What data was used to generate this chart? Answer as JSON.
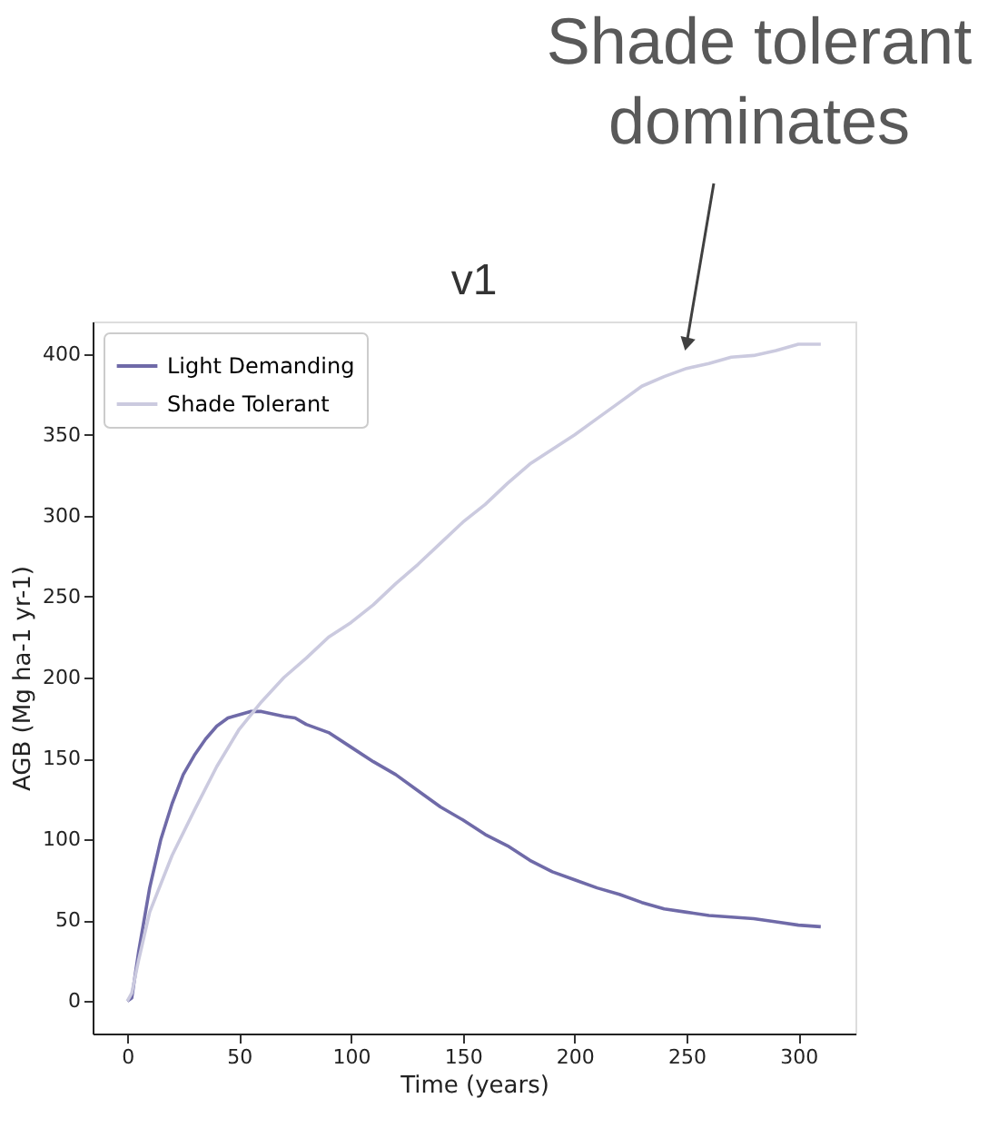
{
  "chart_data": [
    {
      "type": "line",
      "title": "v1",
      "xlabel": "Time (years)",
      "ylabel": "AGB (Mg ha-1 yr-1)",
      "xlim": [
        -15.5,
        325.5
      ],
      "ylim": [
        -20,
        420
      ],
      "xticks": [
        0,
        50,
        100,
        150,
        200,
        250,
        300
      ],
      "yticks": [
        0,
        50,
        100,
        150,
        200,
        250,
        300,
        350,
        400
      ],
      "grid": false,
      "legend": "top left",
      "annotations": [
        {
          "text": "Shade tolerant\ndominates",
          "x": 250,
          "y": 406
        }
      ],
      "series": [
        {
          "name": "Light Demanding",
          "color": "#6f6aa8",
          "x": [
            0,
            2,
            5,
            10,
            15,
            20,
            25,
            30,
            35,
            40,
            45,
            50,
            55,
            60,
            70,
            75,
            80,
            90,
            100,
            110,
            120,
            130,
            140,
            150,
            160,
            170,
            180,
            190,
            200,
            210,
            220,
            230,
            240,
            250,
            260,
            270,
            280,
            290,
            300,
            310
          ],
          "values": [
            0,
            2,
            30,
            70,
            100,
            122,
            140,
            152,
            162,
            170,
            175,
            177,
            179,
            179,
            176,
            175,
            171,
            166,
            157,
            148,
            140,
            130,
            120,
            112,
            103,
            96,
            87,
            80,
            75,
            70,
            66,
            61,
            57,
            55,
            53,
            52,
            51,
            49,
            47,
            46
          ]
        },
        {
          "name": "Shade Tolerant",
          "color": "#cbcadf",
          "x": [
            0,
            2,
            5,
            10,
            20,
            30,
            40,
            50,
            60,
            70,
            80,
            90,
            100,
            110,
            120,
            130,
            140,
            150,
            160,
            170,
            180,
            190,
            200,
            210,
            220,
            230,
            240,
            250,
            260,
            270,
            280,
            290,
            300,
            310
          ],
          "values": [
            0,
            5,
            25,
            55,
            90,
            118,
            145,
            168,
            185,
            200,
            212,
            225,
            234,
            245,
            258,
            270,
            283,
            296,
            307,
            320,
            332,
            341,
            350,
            360,
            370,
            380,
            386,
            391,
            394,
            398,
            399,
            402,
            406,
            406
          ]
        }
      ]
    }
  ]
}
